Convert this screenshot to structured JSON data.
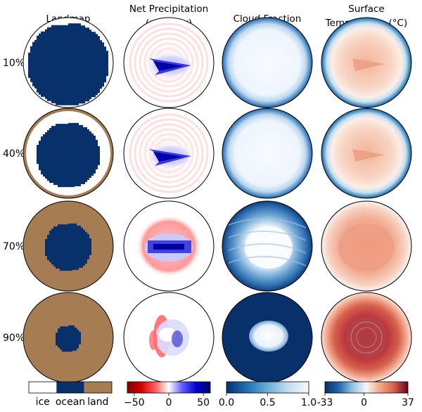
{
  "chart_data": {
    "type": "heatmap",
    "columns": [
      {
        "key": "landmap",
        "title_lines": [
          "Landmap"
        ]
      },
      {
        "key": "precip",
        "title_lines": [
          "Net Precipitation",
          "(mm/day)"
        ]
      },
      {
        "key": "cloud",
        "title_lines": [
          "Cloud Fraction"
        ]
      },
      {
        "key": "temp",
        "title_lines": [
          "Surface",
          "Temperature (°C)"
        ]
      }
    ],
    "rows": [
      {
        "label": "10%",
        "land_fraction": 0.1
      },
      {
        "label": "40%",
        "land_fraction": 0.4
      },
      {
        "label": "70%",
        "land_fraction": 0.7
      },
      {
        "label": "90%",
        "land_fraction": 0.9
      }
    ],
    "landmap_legend": {
      "categories": [
        "ice",
        "ocean",
        "land"
      ],
      "colors": [
        "#ffffff",
        "#08306b",
        "#a67c52"
      ]
    },
    "precip_colorbar": {
      "range": [
        -60,
        60
      ],
      "ticks": [
        -50,
        0,
        50
      ],
      "tick_labels": [
        "−50",
        "0",
        "50"
      ],
      "stops": [
        "#7f0000",
        "#d40000",
        "#ff5a5a",
        "#ffffff",
        "#5a5aff",
        "#0000c8",
        "#00006a"
      ]
    },
    "cloud_colorbar": {
      "range": [
        0.0,
        1.0
      ],
      "ticks": [
        0.0,
        0.5,
        1.0
      ],
      "tick_labels": [
        "0.0",
        "0.5",
        "1.0"
      ],
      "stops": [
        "#08306b",
        "#2171b5",
        "#6baed6",
        "#c6dbef",
        "#f7fbff"
      ]
    },
    "temp_colorbar": {
      "range": [
        -33,
        37
      ],
      "ticks": [
        -33,
        0,
        37
      ],
      "tick_labels": [
        "-33",
        "0",
        "37"
      ],
      "stops": [
        "#053061",
        "#2166ac",
        "#92c5de",
        "#f7f7f7",
        "#f4a582",
        "#d6604d",
        "#67001f"
      ]
    }
  }
}
